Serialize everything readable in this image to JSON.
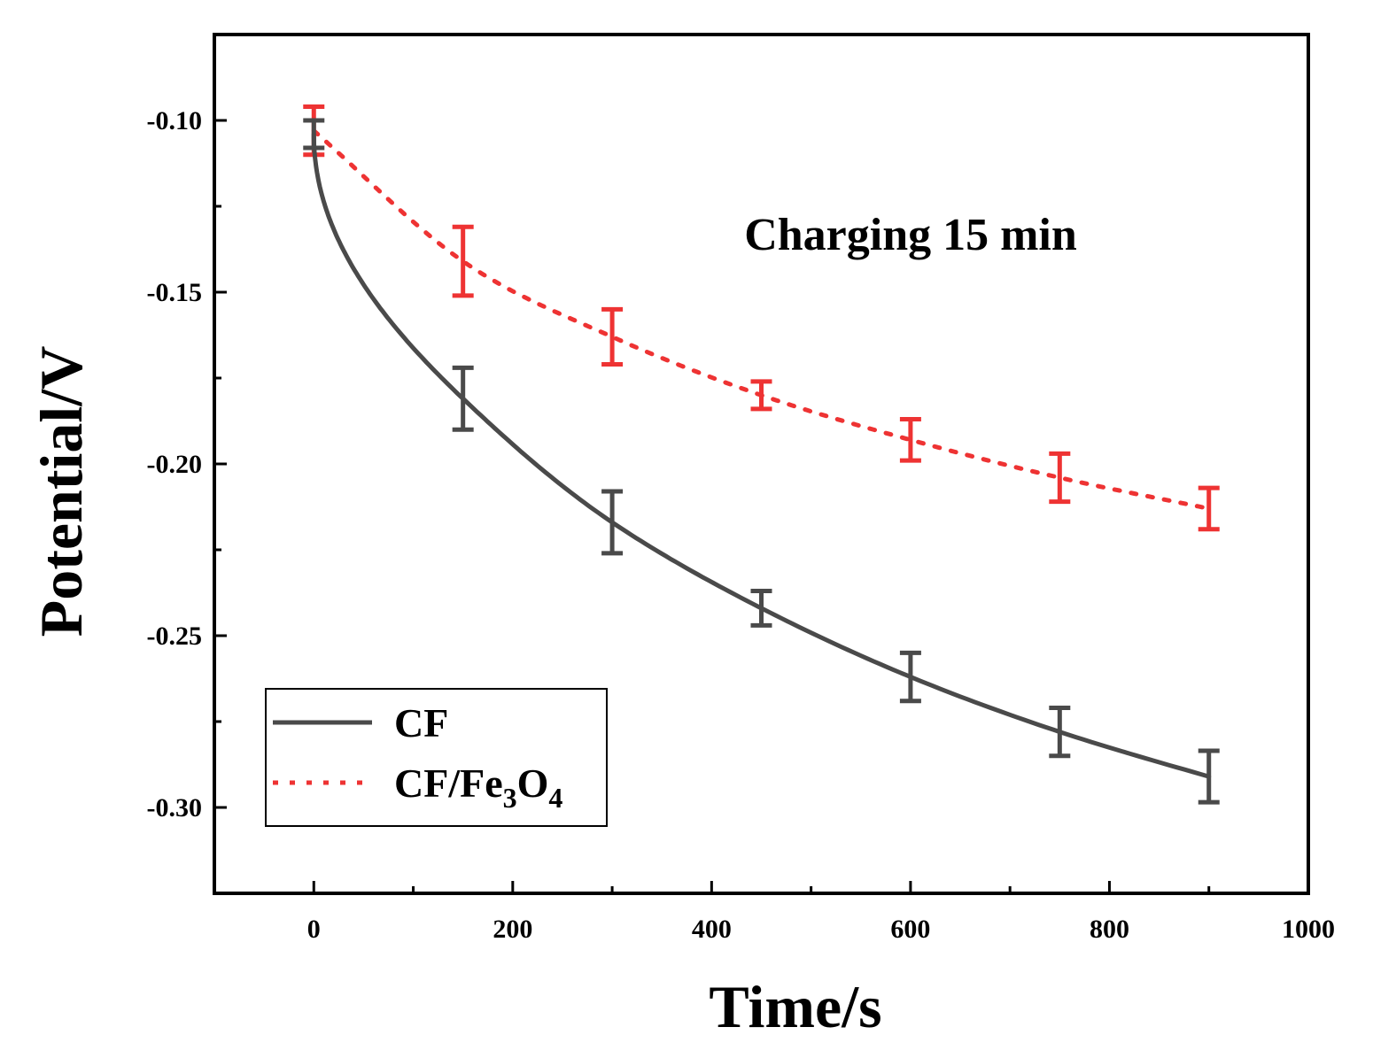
{
  "chart_data": {
    "type": "line",
    "title": "",
    "xlabel": "Time/s",
    "ylabel": "Potential/V",
    "xlim": [
      -100,
      1000
    ],
    "ylim": [
      -0.325,
      -0.075
    ],
    "x_ticks": [
      0,
      200,
      400,
      600,
      800,
      1000
    ],
    "x_tick_labels": [
      "0",
      "200",
      "400",
      "600",
      "800",
      "1000"
    ],
    "y_ticks": [
      -0.1,
      -0.15,
      -0.2,
      -0.25,
      -0.3
    ],
    "y_tick_labels": [
      "-0.10",
      "-0.15",
      "-0.20",
      "-0.25",
      "-0.30"
    ],
    "annotation": "Charging 15 min",
    "legend_position": "bottom-left",
    "grid": false,
    "x": [
      0,
      150,
      300,
      450,
      600,
      750,
      900
    ],
    "series": [
      {
        "name": "CF",
        "legend_main": "CF",
        "color": "#4a4a4a",
        "line_style": "solid",
        "values": [
          -0.104,
          -0.181,
          -0.217,
          -0.242,
          -0.262,
          -0.278,
          -0.291
        ],
        "errors": [
          0.004,
          0.009,
          0.009,
          0.005,
          0.007,
          0.007,
          0.0075
        ]
      },
      {
        "name": "CF/Fe3O4",
        "legend_main": "CF/Fe",
        "legend_sub1": "3",
        "legend_mid": "O",
        "legend_sub2": "4",
        "color": "#ee3333",
        "line_style": "dotted",
        "values": [
          -0.103,
          -0.141,
          -0.163,
          -0.18,
          -0.193,
          -0.204,
          -0.213
        ],
        "errors": [
          0.007,
          0.01,
          0.008,
          0.004,
          0.006,
          0.007,
          0.006
        ]
      }
    ]
  }
}
